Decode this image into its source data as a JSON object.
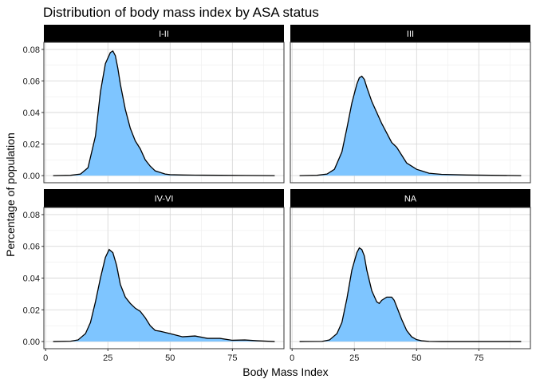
{
  "chart_data": {
    "type": "area",
    "title": "Distribution of body mass index by ASA status",
    "xlabel": "Body Mass Index",
    "ylabel": "Percentage of population",
    "xlim": [
      3,
      92
    ],
    "ylim": [
      0,
      0.08
    ],
    "x_ticks": [
      0,
      25,
      50,
      75
    ],
    "y_ticks": [
      0.0,
      0.02,
      0.04,
      0.06,
      0.08
    ],
    "y_tick_labels": [
      "0.00",
      "0.02",
      "0.04",
      "0.06",
      "0.08"
    ],
    "grid": true,
    "fill_color": "#7ec5ff",
    "strip_color": "#000000",
    "panels": [
      {
        "name": "I-II",
        "x": [
          3,
          10,
          14,
          17,
          20,
          22,
          24,
          26,
          27,
          28,
          29,
          30,
          32,
          34,
          36,
          38,
          40,
          42,
          44,
          46,
          48,
          50,
          55,
          60,
          70,
          80,
          92
        ],
        "y": [
          0,
          0.0002,
          0.001,
          0.005,
          0.025,
          0.053,
          0.071,
          0.078,
          0.079,
          0.076,
          0.068,
          0.058,
          0.042,
          0.03,
          0.022,
          0.017,
          0.01,
          0.006,
          0.003,
          0.002,
          0.001,
          0.0006,
          0.0004,
          0.0003,
          0.0002,
          0.0001,
          0
        ]
      },
      {
        "name": "III",
        "x": [
          3,
          10,
          14,
          17,
          20,
          22,
          24,
          26,
          27,
          28,
          29,
          30,
          32,
          34,
          36,
          38,
          40,
          42,
          44,
          46,
          48,
          50,
          52,
          55,
          60,
          70,
          80,
          92
        ],
        "y": [
          0,
          0.0002,
          0.001,
          0.004,
          0.015,
          0.03,
          0.046,
          0.058,
          0.062,
          0.063,
          0.061,
          0.056,
          0.047,
          0.04,
          0.033,
          0.027,
          0.021,
          0.018,
          0.013,
          0.008,
          0.006,
          0.004,
          0.003,
          0.0015,
          0.0008,
          0.0004,
          0.0002,
          0
        ]
      },
      {
        "name": "IV-VI",
        "x": [
          3,
          10,
          13,
          16,
          18,
          20,
          22,
          24,
          25.5,
          27,
          28.5,
          30,
          32,
          34,
          36,
          38,
          40,
          42,
          44,
          46,
          50,
          55,
          60,
          65,
          70,
          75,
          80,
          85,
          92
        ],
        "y": [
          0,
          0.0002,
          0.001,
          0.005,
          0.012,
          0.025,
          0.04,
          0.053,
          0.058,
          0.056,
          0.048,
          0.036,
          0.028,
          0.024,
          0.021,
          0.019,
          0.015,
          0.01,
          0.007,
          0.0065,
          0.005,
          0.003,
          0.0035,
          0.002,
          0.002,
          0.0008,
          0.001,
          0.0005,
          0
        ]
      },
      {
        "name": "NA",
        "x": [
          3,
          12,
          15,
          18,
          20,
          22,
          24,
          26,
          27,
          28,
          29,
          30,
          32,
          34,
          35,
          36,
          38,
          40,
          41,
          42,
          44,
          46,
          48,
          50,
          52,
          55,
          60,
          70,
          80,
          92
        ],
        "y": [
          0,
          0.0001,
          0.001,
          0.005,
          0.012,
          0.027,
          0.045,
          0.056,
          0.059,
          0.058,
          0.054,
          0.045,
          0.032,
          0.025,
          0.024,
          0.026,
          0.028,
          0.028,
          0.026,
          0.022,
          0.014,
          0.007,
          0.003,
          0.0012,
          0.0005,
          0.0001,
          0,
          0,
          0,
          0
        ]
      }
    ]
  }
}
